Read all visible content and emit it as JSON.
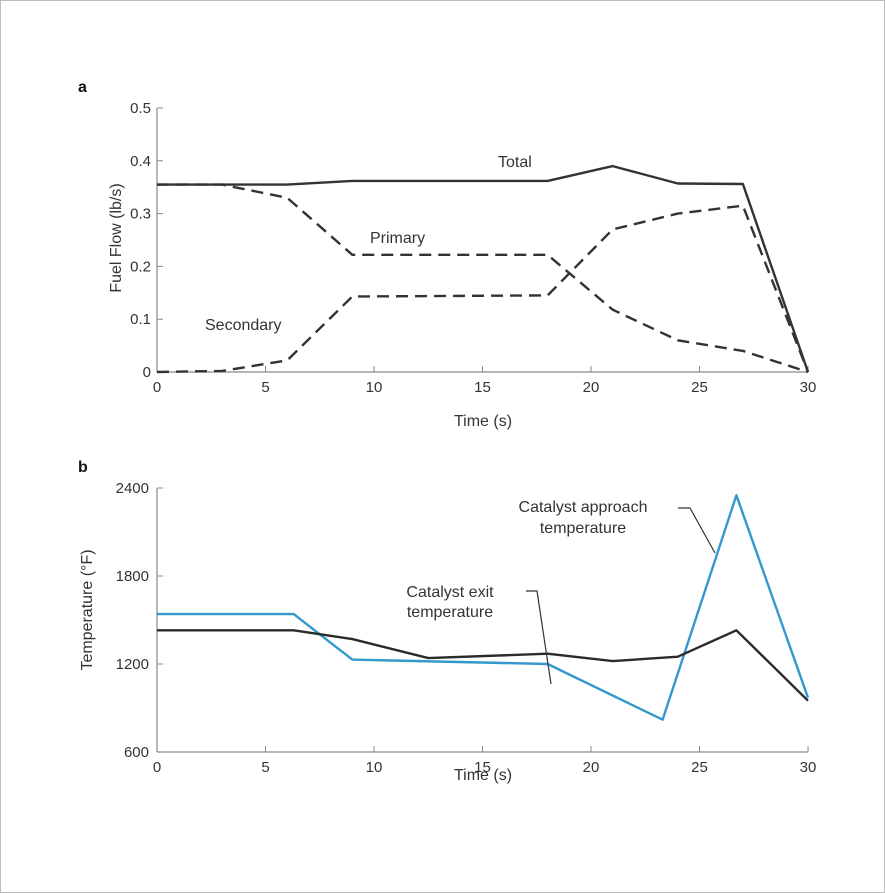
{
  "chart_data": [
    {
      "panel_label": "a",
      "type": "line",
      "xlabel": "Time (s)",
      "ylabel": "Fuel Flow (lb/s)",
      "xlim": [
        0,
        30
      ],
      "ylim": [
        0,
        0.5
      ],
      "xticks": [
        "0",
        "5",
        "10",
        "15",
        "20",
        "25",
        "30"
      ],
      "yticks": [
        "0",
        "0.1",
        "0.2",
        "0.3",
        "0.4",
        "0.5"
      ],
      "series": [
        {
          "name": "Total",
          "style": "solid",
          "color": "#333333",
          "x": [
            0,
            6,
            9,
            18,
            21,
            24,
            27,
            30
          ],
          "y": [
            0.355,
            0.355,
            0.362,
            0.362,
            0.39,
            0.357,
            0.356,
            0.0
          ]
        },
        {
          "name": "Primary",
          "style": "dashed",
          "color": "#333333",
          "x": [
            0,
            3,
            6,
            9,
            18,
            21,
            24,
            27,
            30
          ],
          "y": [
            0.355,
            0.355,
            0.33,
            0.222,
            0.222,
            0.118,
            0.06,
            0.04,
            0.0
          ]
        },
        {
          "name": "Secondary",
          "style": "dashed",
          "color": "#333333",
          "x": [
            0,
            3,
            6,
            9,
            18,
            21,
            24,
            27,
            30
          ],
          "y": [
            0.0,
            0.002,
            0.022,
            0.143,
            0.145,
            0.27,
            0.3,
            0.315,
            0.0
          ]
        }
      ]
    },
    {
      "panel_label": "b",
      "type": "line",
      "xlabel": "Time (s)",
      "ylabel": "Temperature (°F)",
      "xlim": [
        0,
        30
      ],
      "ylim": [
        600,
        2400
      ],
      "xticks": [
        "0",
        "5",
        "10",
        "15",
        "20",
        "25",
        "30"
      ],
      "yticks": [
        "600",
        "1200",
        "1800",
        "2400"
      ],
      "series": [
        {
          "name": "Catalyst approach temperature",
          "style": "solid",
          "color": "#3399cc",
          "x": [
            0,
            6.3,
            9,
            18,
            23.3,
            26.7,
            30
          ],
          "y": [
            1540,
            1540,
            1230,
            1200,
            820,
            2350,
            970
          ]
        },
        {
          "name": "Catalyst exit temperature",
          "style": "solid",
          "color": "#2b2b2b",
          "x": [
            0,
            6.3,
            9,
            12.5,
            18,
            21,
            24,
            26.7,
            30
          ],
          "y": [
            1430,
            1430,
            1370,
            1240,
            1270,
            1220,
            1250,
            1430,
            950
          ]
        }
      ]
    }
  ]
}
